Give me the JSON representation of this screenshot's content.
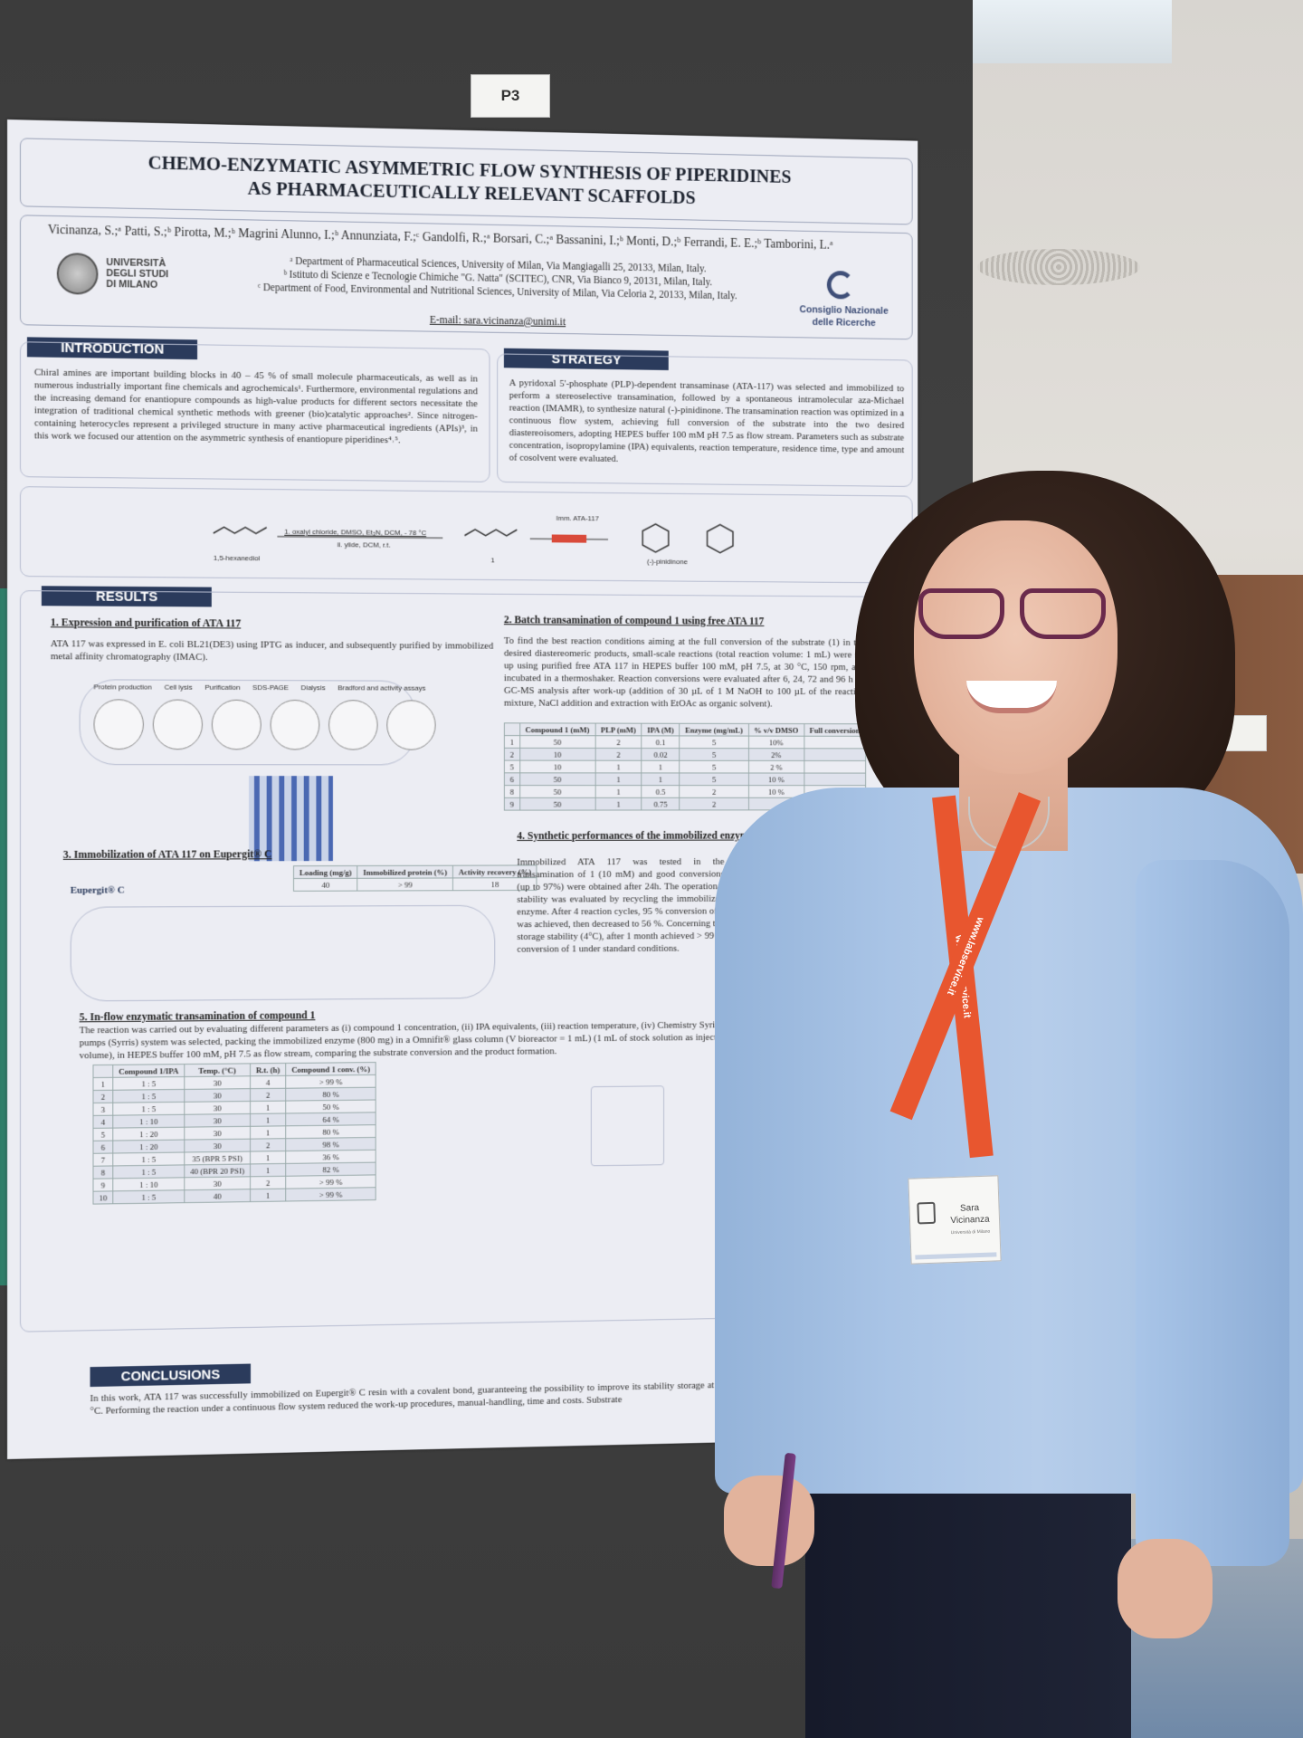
{
  "booth_label": "P3",
  "poster": {
    "title_line1": "CHEMO-ENZYMATIC ASYMMETRIC FLOW SYNTHESIS OF PIPERIDINES",
    "title_line2": "AS PHARMACEUTICALLY RELEVANT SCAFFOLDS",
    "authors": "Vicinanza, S.;ᵃ Patti, S.;ᵇ Pirotta, M.;ᵇ Magrini Alunno, I.;ᵇ Annunziata, F.;ᶜ Gandolfi, R.;ᵃ Borsari, C.;ᵃ Bassanini, I.;ᵇ Monti, D.;ᵇ Ferrandi, E. E.;ᵇ Tamborini, L.ᵃ",
    "affiliation_a": "ᵃ Department of Pharmaceutical Sciences, University of Milan, Via Mangiagalli 25, 20133, Milan, Italy.",
    "affiliation_b": "ᵇ Istituto di Scienze e Tecnologie Chimiche \"G. Natta\" (SCITEC), CNR, Via Bianco 9, 20131, Milan, Italy.",
    "affiliation_c": "ᶜ Department of Food, Environmental and Nutritional Sciences, University of Milan, Via Celoria 2, 20133, Milan, Italy.",
    "email": "E-mail: sara.vicinanza@unimi.it",
    "logo_left": "UNIVERSITÀ DEGLI STUDI DI MILANO",
    "logo_right_line1": "Consiglio Nazionale",
    "logo_right_line2": "delle Ricerche",
    "introduction": {
      "heading": "INTRODUCTION",
      "text": "Chiral amines are important building blocks in 40 – 45 % of small molecule pharmaceuticals, as well as in numerous industrially important fine chemicals and agrochemicals¹. Furthermore, environmental regulations and the increasing demand for enantiopure compounds as high-value products for different sectors necessitate the integration of traditional chemical synthetic methods with greener (bio)catalytic approaches². Since nitrogen-containing heterocycles represent a privileged structure in many active pharmaceutical ingredients (APIs)³, in this work we focused our attention on the asymmetric synthesis of enantiopure piperidines⁴˒⁵."
    },
    "strategy": {
      "heading": "STRATEGY",
      "text": "A pyridoxal 5'-phosphate (PLP)-dependent transaminase (ATA-117) was selected and immobilized to perform a stereoselective transamination, followed by a spontaneous intramolecular aza-Michael reaction (IMAMR), to synthesize natural (-)-pinidinone. The transamination reaction was optimized in a continuous flow system, achieving full conversion of the substrate into the two desired diastereoisomers, adopting HEPES buffer 100 mM pH 7.5 as flow stream. Parameters such as substrate concentration, isopropylamine (IPA) equivalents, reaction temperature, residence time, type and amount of cosolvent were evaluated."
    },
    "scheme": {
      "start": "1,5-hexanediol",
      "step1": "1. oxalyl chloride, DMSO, Et₃N, DCM, - 78 °C",
      "step2": "ii. ylide, DCM, r.t.",
      "intermediate": "1",
      "enzyme": "Imm. ATA-117",
      "product": "(-)-pinidinone"
    },
    "results": {
      "heading": "RESULTS",
      "s1_title": "1.  Expression and purification of ATA 117",
      "s1_text": "ATA 117 was expressed in E. coli BL21(DE3) using IPTG as inducer, and subsequently purified by immobilized metal affinity chromatography (IMAC).",
      "s1_steps": [
        "Protein production",
        "Cell lysis",
        "Purification",
        "SDS-PAGE",
        "Dialysis",
        "Bradford and activity assays"
      ],
      "s2_title": "2.  Batch transamination of compound 1 using free ATA 117",
      "s2_text": "To find the best reaction conditions aiming at the full conversion of the substrate (1) in the desired diastereomeric products, small-scale reactions (total reaction volume: 1 mL) were set up using purified free ATA 117 in HEPES buffer 100 mM, pH 7.5, at 30 °C, 150 rpm, and incubated in a thermoshaker. Reaction conversions were evaluated after 6, 24, 72 and 96 h by GC-MS analysis after work-up (addition of 30 µL of 1 M NaOH to 100 µL of the reaction mixture, NaCl addition and extraction with EtOAc as organic solvent).",
      "s3_title": "3.  Immobilization of ATA 117 on Eupergit® C",
      "s3_label": "Eupergit® C",
      "s4_title": "4. Synthetic performances of the immobilized enzyme in batch",
      "s4_text": "Immobilized ATA 117 was tested in the transamination of 1 (10 mM) and good conversions (up to 97%) were obtained after 24h. The operational stability was evaluated by recycling the immobilized enzyme. After 4 reaction cycles, 95 %  conversion of 1 was achieved, then decreased to 56 %. Concerning the storage stability (4°C), after 1 month achieved > 99 % conversion of 1 under standard conditions.",
      "s5_title": "5.  In-flow enzymatic transamination of compound 1",
      "s5_text": "The reaction was carried out by evaluating different parameters as (i) compound 1 concentration, (ii) IPA equivalents, (iii) reaction temperature, (iv) Chemistry Syringe pumps (Syrris) system was selected, packing the immobilized enzyme (800 mg) in a Omnifit® glass column (V bioreactor = 1 mL) (1 mL of stock solution as injection volume), in HEPES buffer 100 mM, pH 7.5 as flow stream, comparing the substrate conversion and the product formation."
    },
    "table_batch": {
      "headers": [
        "",
        "Compound 1 (mM)",
        "PLP (mM)",
        "IPA (M)",
        "Enzyme (mg/mL)",
        "% v/v DMSO",
        "Full conversion"
      ],
      "rows": [
        [
          "1",
          "50",
          "2",
          "0.1",
          "5",
          "10%",
          ""
        ],
        [
          "2",
          "10",
          "2",
          "0.02",
          "5",
          "2%",
          ""
        ],
        [
          "5",
          "10",
          "1",
          "1",
          "5",
          "2 %",
          ""
        ],
        [
          "6",
          "50",
          "1",
          "1",
          "5",
          "10 %",
          ""
        ],
        [
          "8",
          "50",
          "1",
          "0.5",
          "2",
          "10 %",
          ""
        ],
        [
          "9",
          "50",
          "1",
          "0.75",
          "2",
          "",
          ""
        ]
      ]
    },
    "table_immob": {
      "headers": [
        "Loading (mg/g)",
        "Immobilized protein (%)",
        "Activity recovery (%)"
      ],
      "row": [
        "40",
        "> 99",
        "18"
      ]
    },
    "table_flow": {
      "headers": [
        "",
        "Compound 1/IPA",
        "Temp. (°C)",
        "R.t. (h)",
        "Compound 1 conv. (%)"
      ],
      "rows": [
        [
          "1",
          "1 : 5",
          "30",
          "4",
          "> 99 %"
        ],
        [
          "2",
          "1 : 5",
          "30",
          "2",
          "80 %"
        ],
        [
          "3",
          "1 : 5",
          "30",
          "1",
          "50 %"
        ],
        [
          "4",
          "1 : 10",
          "30",
          "1",
          "64 %"
        ],
        [
          "5",
          "1 : 20",
          "30",
          "1",
          "80 %"
        ],
        [
          "6",
          "1 : 20",
          "30",
          "2",
          "98 %"
        ],
        [
          "7",
          "1 : 5",
          "35 (BPR 5 PSI)",
          "1",
          "36 %"
        ],
        [
          "8",
          "1 : 5",
          "40 (BPR 20 PSI)",
          "1",
          "82 %"
        ],
        [
          "9",
          "1 : 10",
          "30",
          "2",
          "> 99 %"
        ],
        [
          "10",
          "1 : 5",
          "40",
          "1",
          "> 99 %"
        ]
      ]
    },
    "conclusions": {
      "heading": "CONCLUSIONS",
      "text": "In this work, ATA 117 was successfully immobilized on Eupergit® C resin with a covalent bond, guaranteeing the possibility to improve its stability storage at 4 °C. Performing the reaction under a continuous flow system reduced the work-up procedures, manual-handling, time and costs. Substrate"
    }
  },
  "lanyard_text": "www.labservice.it",
  "badge": {
    "name_line1": "Sara",
    "name_line2": "Vicinanza",
    "subtitle": "Università di Milano"
  }
}
